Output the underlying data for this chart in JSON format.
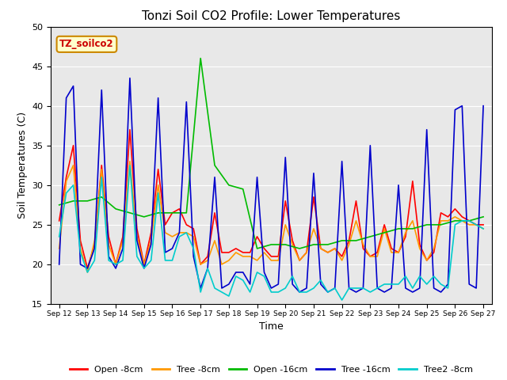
{
  "title": "Tonzi Soil CO2 Profile: Lower Temperatures",
  "xlabel": "Time",
  "ylabel": "Soil Temperatures (C)",
  "ylim": [
    15,
    50
  ],
  "background_color": "#ffffff",
  "plot_bg_color": "#e8e8e8",
  "label_box_text": "TZ_soilco2",
  "label_box_facecolor": "#ffffcc",
  "label_box_edgecolor": "#cc8800",
  "label_box_textcolor": "#cc0000",
  "xtick_labels": [
    "Sep 12",
    "Sep 13",
    "Sep 14",
    "Sep 15",
    "Sep 16",
    "Sep 17",
    "Sep 18",
    "Sep 19",
    "Sep 20",
    "Sep 21",
    "Sep 22",
    "Sep 23",
    "Sep 24",
    "Sep 25",
    "Sep 26",
    "Sep 27"
  ],
  "series": {
    "open_8cm": {
      "label": "Open -8cm",
      "color": "#ff0000",
      "lw": 1.2,
      "x": [
        0,
        0.25,
        0.5,
        0.75,
        1.0,
        1.25,
        1.5,
        1.75,
        2.0,
        2.25,
        2.5,
        2.75,
        3.0,
        3.25,
        3.5,
        3.75,
        4.0,
        4.25,
        4.5,
        4.75,
        5.0,
        5.25,
        5.5,
        5.75,
        6.0,
        6.25,
        6.5,
        6.75,
        7.0,
        7.25,
        7.5,
        7.75,
        8.0,
        8.25,
        8.5,
        8.75,
        9.0,
        9.25,
        9.5,
        9.75,
        10.0,
        10.25,
        10.5,
        10.75,
        11.0,
        11.25,
        11.5,
        11.75,
        12.0,
        12.25,
        12.5,
        12.75,
        13.0,
        13.25,
        13.5,
        13.75,
        14.0,
        14.25,
        14.5,
        14.75,
        15.0
      ],
      "y": [
        25.5,
        31.0,
        35.0,
        23.0,
        19.5,
        22.5,
        32.5,
        23.5,
        20.0,
        23.5,
        37.0,
        24.5,
        20.0,
        24.0,
        32.0,
        25.0,
        26.5,
        27.0,
        25.0,
        24.5,
        20.0,
        21.0,
        26.5,
        21.5,
        21.5,
        22.0,
        21.5,
        21.5,
        23.5,
        22.0,
        21.0,
        21.0,
        28.0,
        23.0,
        20.5,
        21.5,
        28.5,
        22.0,
        21.5,
        22.0,
        21.0,
        23.0,
        28.0,
        22.0,
        21.0,
        21.5,
        25.0,
        22.0,
        21.5,
        23.5,
        30.5,
        22.5,
        20.5,
        21.5,
        26.5,
        26.0,
        27.0,
        26.0,
        25.5,
        25.0,
        25.0
      ]
    },
    "tree_8cm": {
      "label": "Tree -8cm",
      "color": "#ff9900",
      "lw": 1.2,
      "x": [
        0,
        0.25,
        0.5,
        0.75,
        1.0,
        1.25,
        1.5,
        1.75,
        2.0,
        2.25,
        2.5,
        2.75,
        3.0,
        3.25,
        3.5,
        3.75,
        4.0,
        4.25,
        4.5,
        4.75,
        5.0,
        5.25,
        5.5,
        5.75,
        6.0,
        6.25,
        6.5,
        6.75,
        7.0,
        7.25,
        7.5,
        7.75,
        8.0,
        8.25,
        8.5,
        8.75,
        9.0,
        9.25,
        9.5,
        9.75,
        10.0,
        10.25,
        10.5,
        10.75,
        11.0,
        11.25,
        11.5,
        11.75,
        12.0,
        12.25,
        12.5,
        12.75,
        13.0,
        13.25,
        13.5,
        13.75,
        14.0,
        14.25,
        14.5,
        14.75,
        15.0
      ],
      "y": [
        22.0,
        30.5,
        32.5,
        22.0,
        19.0,
        23.0,
        32.0,
        22.5,
        20.0,
        23.0,
        33.0,
        23.5,
        20.0,
        23.0,
        30.0,
        24.0,
        23.5,
        24.0,
        24.0,
        23.5,
        20.0,
        20.5,
        23.0,
        20.0,
        20.5,
        21.5,
        21.0,
        21.0,
        20.5,
        21.5,
        20.5,
        20.5,
        25.0,
        22.5,
        20.5,
        21.5,
        24.5,
        22.0,
        21.5,
        22.0,
        20.5,
        22.5,
        25.5,
        22.5,
        21.0,
        21.0,
        24.5,
        21.5,
        21.5,
        24.0,
        25.5,
        22.0,
        20.5,
        22.0,
        25.5,
        25.5,
        26.0,
        25.5,
        25.0,
        25.0,
        24.5
      ]
    },
    "open_16cm": {
      "label": "Open -16cm",
      "color": "#00bb00",
      "lw": 1.2,
      "x": [
        0,
        0.5,
        1.0,
        1.5,
        2.0,
        2.5,
        3.0,
        3.5,
        4.0,
        4.5,
        5.0,
        5.5,
        6.0,
        6.5,
        7.0,
        7.5,
        8.0,
        8.5,
        9.0,
        9.5,
        10.0,
        10.5,
        11.0,
        11.5,
        12.0,
        12.5,
        13.0,
        13.5,
        14.0,
        14.5,
        15.0
      ],
      "y": [
        27.5,
        28.0,
        28.0,
        28.5,
        27.0,
        26.5,
        26.0,
        26.5,
        26.5,
        26.5,
        46.0,
        32.5,
        30.0,
        29.5,
        22.0,
        22.5,
        22.5,
        22.0,
        22.5,
        22.5,
        23.0,
        23.0,
        23.5,
        24.0,
        24.5,
        24.5,
        25.0,
        25.0,
        25.5,
        25.5,
        26.0
      ]
    },
    "tree_16cm": {
      "label": "Tree -16cm",
      "color": "#0000cc",
      "lw": 1.2,
      "x": [
        0,
        0.25,
        0.5,
        0.75,
        1.0,
        1.25,
        1.5,
        1.75,
        2.0,
        2.25,
        2.5,
        2.75,
        3.0,
        3.25,
        3.5,
        3.75,
        4.0,
        4.25,
        4.5,
        4.75,
        5.0,
        5.25,
        5.5,
        5.75,
        6.0,
        6.25,
        6.5,
        6.75,
        7.0,
        7.25,
        7.5,
        7.75,
        8.0,
        8.25,
        8.5,
        8.75,
        9.0,
        9.25,
        9.5,
        9.75,
        10.0,
        10.25,
        10.5,
        10.75,
        11.0,
        11.25,
        11.5,
        11.75,
        12.0,
        12.25,
        12.5,
        12.75,
        13.0,
        13.25,
        13.5,
        13.75,
        14.0,
        14.25,
        14.5,
        14.75,
        15.0
      ],
      "y": [
        20.0,
        41.0,
        42.5,
        20.0,
        19.5,
        22.0,
        42.0,
        21.0,
        19.5,
        22.0,
        43.5,
        23.0,
        19.5,
        22.5,
        41.0,
        21.5,
        22.0,
        24.0,
        40.5,
        21.0,
        17.0,
        19.5,
        31.0,
        17.0,
        17.5,
        19.0,
        19.0,
        17.5,
        31.0,
        19.0,
        17.0,
        17.5,
        33.5,
        17.5,
        16.5,
        17.0,
        31.5,
        17.5,
        16.5,
        17.0,
        33.0,
        17.0,
        16.5,
        17.0,
        35.0,
        17.0,
        16.5,
        17.0,
        30.0,
        17.0,
        16.5,
        17.0,
        37.0,
        17.0,
        16.5,
        17.5,
        39.5,
        40.0,
        17.5,
        17.0,
        40.0
      ]
    },
    "tree2_8cm": {
      "label": "Tree2 -8cm",
      "color": "#00cccc",
      "lw": 1.2,
      "x": [
        0,
        0.25,
        0.5,
        0.75,
        1.0,
        1.25,
        1.5,
        1.75,
        2.0,
        2.25,
        2.5,
        2.75,
        3.0,
        3.25,
        3.5,
        3.75,
        4.0,
        4.25,
        4.5,
        4.75,
        5.0,
        5.25,
        5.5,
        5.75,
        6.0,
        6.25,
        6.5,
        6.75,
        7.0,
        7.25,
        7.5,
        7.75,
        8.0,
        8.25,
        8.5,
        8.75,
        9.0,
        9.25,
        9.5,
        9.75,
        10.0,
        10.25,
        10.5,
        10.75,
        11.0,
        11.25,
        11.5,
        11.75,
        12.0,
        12.25,
        12.5,
        12.75,
        13.0,
        13.25,
        13.5,
        13.75,
        14.0,
        14.25,
        14.5,
        14.75,
        15.0
      ],
      "y": [
        23.5,
        29.0,
        30.0,
        21.5,
        19.0,
        20.5,
        31.0,
        20.5,
        20.0,
        20.5,
        32.5,
        21.0,
        19.5,
        20.5,
        29.0,
        20.5,
        20.5,
        23.5,
        24.0,
        22.0,
        16.5,
        19.5,
        17.0,
        16.5,
        16.0,
        18.5,
        18.0,
        16.5,
        19.0,
        18.5,
        16.5,
        16.5,
        17.0,
        18.5,
        16.5,
        16.5,
        17.0,
        18.0,
        16.5,
        17.0,
        15.5,
        17.0,
        17.0,
        17.0,
        16.5,
        17.0,
        17.5,
        17.5,
        17.5,
        18.5,
        17.0,
        18.5,
        17.5,
        18.5,
        17.5,
        17.0,
        25.0,
        25.5,
        25.5,
        25.0,
        24.5
      ]
    }
  }
}
